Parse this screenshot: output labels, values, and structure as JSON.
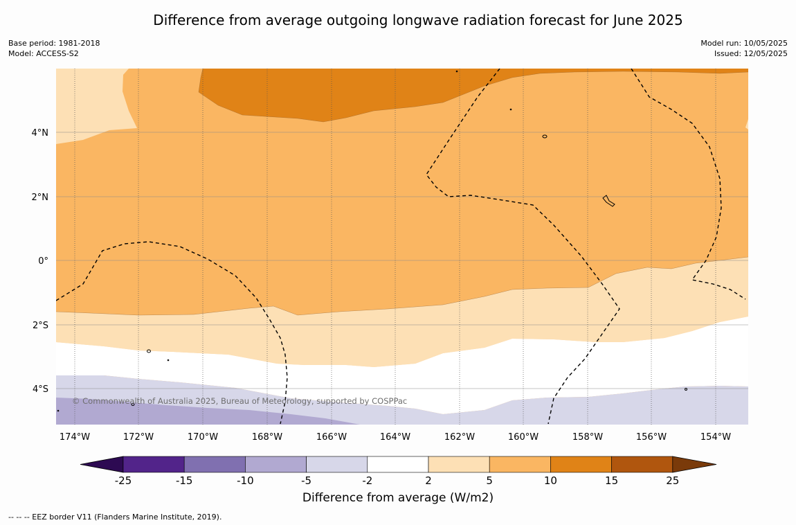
{
  "title": "Difference from average outgoing longwave radiation forecast for June 2025",
  "base_period": "Base period: 1981-2018",
  "model": "Model: ACCESS-S2",
  "model_run": "Model run: 10/05/2025",
  "issued": "Issued: 12/05/2025",
  "credit": "© Commonwealth of Australia 2025, Bureau of Meteorology, supported by COSPPac",
  "footer": "--  --  -- EEZ border V11 (Flanders Marine Institute, 2019).",
  "map": {
    "lon_labels": [
      "174°W",
      "172°W",
      "170°W",
      "168°W",
      "166°W",
      "164°W",
      "162°W",
      "160°W",
      "158°W",
      "156°W",
      "154°W"
    ],
    "lat_labels": [
      "4°N",
      "2°N",
      "0°",
      "2°S",
      "4°S"
    ],
    "colors": {
      "gt15": "#b0560e",
      "10_15": "#e08317",
      "5_10": "#fab662",
      "2_5": "#fde0b5",
      "n2_2": "#ffffff",
      "n5_n2": "#d7d7e9",
      "n10_n5": "#b1a9d1",
      "n15_n10": "#8070b0",
      "n25_n15": "#52248a",
      "lt25": "#2d0a52"
    }
  },
  "colorbar": {
    "title": "Difference from average (W/m2)",
    "ticks": [
      "-25",
      "-15",
      "-10",
      "-5",
      "-2",
      "2",
      "5",
      "10",
      "15",
      "25"
    ],
    "colors": [
      "#52248a",
      "#8070b0",
      "#b1a9d1",
      "#d7d7e9",
      "#ffffff",
      "#fde0b5",
      "#fab662",
      "#e08317",
      "#b0560e"
    ],
    "under_color": "#2d0a52",
    "over_color": "#7a3a0a"
  }
}
